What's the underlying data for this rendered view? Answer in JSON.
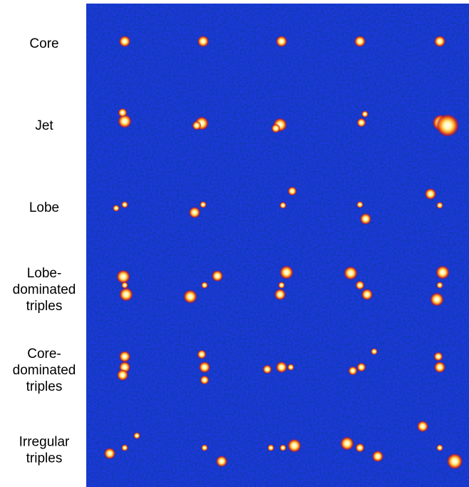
{
  "rows": [
    {
      "label": [
        "Core"
      ]
    },
    {
      "label": [
        "Jet"
      ]
    },
    {
      "label": [
        "Lobe"
      ]
    },
    {
      "label": [
        "Lobe-",
        "dominated",
        "triples"
      ]
    },
    {
      "label": [
        "Core-",
        "dominated",
        "triples"
      ]
    },
    {
      "label": [
        "Irregular",
        "triples"
      ]
    }
  ]
}
